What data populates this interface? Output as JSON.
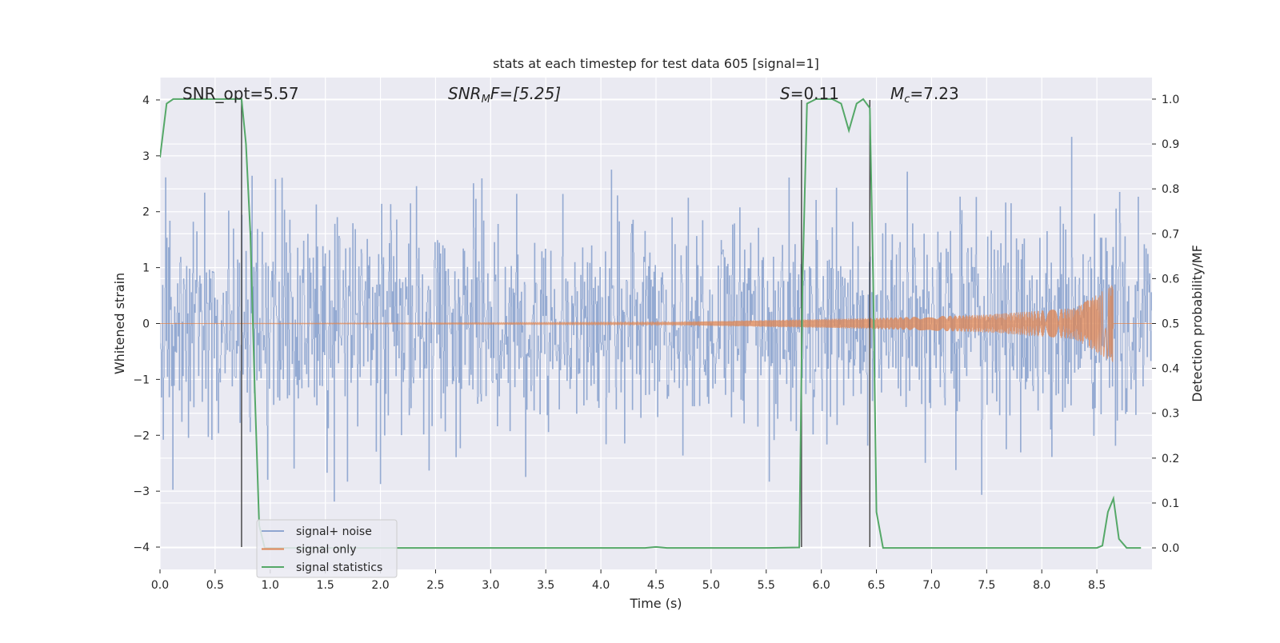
{
  "chart_data": {
    "type": "line",
    "title": "stats at each timestep for test data 605 [signal=1]",
    "xlabel": "Time (s)",
    "ylabel": "Whitened strain",
    "y2label": "Detection probability/MF",
    "xlim": [
      0,
      9.0
    ],
    "ylim": [
      -4.4,
      4.4
    ],
    "y2lim": [
      -0.048,
      1.048
    ],
    "x_ticks": [
      0.0,
      0.5,
      1.0,
      1.5,
      2.0,
      2.5,
      3.0,
      3.5,
      4.0,
      4.5,
      5.0,
      5.5,
      6.0,
      6.5,
      7.0,
      7.5,
      8.0,
      8.5
    ],
    "x_tick_labels": [
      "0.0",
      "0.5",
      "1.0",
      "1.5",
      "2.0",
      "2.5",
      "3.0",
      "3.5",
      "4.0",
      "4.5",
      "5.0",
      "5.5",
      "6.0",
      "6.5",
      "7.0",
      "7.5",
      "8.0",
      "8.5"
    ],
    "y_ticks": [
      -4,
      -3,
      -2,
      -1,
      0,
      1,
      2,
      3,
      4
    ],
    "y_tick_labels": [
      "−4",
      "−3",
      "−2",
      "−1",
      "0",
      "1",
      "2",
      "3",
      "4"
    ],
    "y2_ticks": [
      0.0,
      0.1,
      0.2,
      0.3,
      0.4,
      0.5,
      0.6,
      0.7,
      0.8,
      0.9,
      1.0
    ],
    "y2_tick_labels": [
      "0.0",
      "0.1",
      "0.2",
      "0.3",
      "0.4",
      "0.5",
      "0.6",
      "0.7",
      "0.8",
      "0.9",
      "1.0"
    ],
    "grid": true,
    "legend_position": "lower-left",
    "annotations": {
      "snr_opt": "SNR_opt=5.57",
      "snr_mf_sym": "SNR",
      "snr_mf_sub": "M",
      "snr_mf_rest": "F=[5.25]",
      "s_sym": "S",
      "s_rest": "=0.11",
      "mc_sym": "M",
      "mc_sub": "c",
      "mc_rest": "=7.23"
    },
    "series": [
      {
        "name": "signal+ noise",
        "color": "#8fa6d0",
        "kind": "noise",
        "x_range": [
          0,
          9.0
        ],
        "sigma": 1.0,
        "envelope_max": 3.6,
        "envelope_min": -3.6
      },
      {
        "name": "signal only",
        "color": "#dd8452",
        "kind": "chirp",
        "x_range": [
          0,
          8.65
        ],
        "amplitude_points": [
          [
            0,
            0.0
          ],
          [
            4.5,
            0.02
          ],
          [
            5.5,
            0.06
          ],
          [
            6.5,
            0.1
          ],
          [
            7.5,
            0.16
          ],
          [
            8.3,
            0.28
          ],
          [
            8.65,
            0.7
          ]
        ]
      },
      {
        "name": "signal statistics",
        "color": "#55a868",
        "kind": "line",
        "axis": "right",
        "points": [
          [
            0.0,
            0.87
          ],
          [
            0.06,
            0.99
          ],
          [
            0.12,
            1.0
          ],
          [
            0.2,
            1.0
          ],
          [
            0.4,
            1.0
          ],
          [
            0.6,
            1.0
          ],
          [
            0.74,
            1.0
          ],
          [
            0.78,
            0.9
          ],
          [
            0.82,
            0.7
          ],
          [
            0.86,
            0.35
          ],
          [
            0.9,
            0.05
          ],
          [
            0.95,
            0.0
          ],
          [
            2.0,
            0.0
          ],
          [
            3.0,
            0.0
          ],
          [
            4.0,
            0.0
          ],
          [
            4.4,
            0.0
          ],
          [
            4.5,
            0.002
          ],
          [
            4.6,
            0.0
          ],
          [
            5.0,
            0.0
          ],
          [
            5.5,
            0.0
          ],
          [
            5.8,
            0.001
          ],
          [
            5.83,
            0.6
          ],
          [
            5.87,
            0.99
          ],
          [
            5.95,
            1.0
          ],
          [
            6.1,
            1.0
          ],
          [
            6.18,
            0.99
          ],
          [
            6.25,
            0.93
          ],
          [
            6.32,
            0.99
          ],
          [
            6.38,
            1.0
          ],
          [
            6.44,
            0.98
          ],
          [
            6.47,
            0.6
          ],
          [
            6.5,
            0.08
          ],
          [
            6.56,
            0.0
          ],
          [
            7.0,
            0.0
          ],
          [
            8.0,
            0.0
          ],
          [
            8.5,
            0.0
          ],
          [
            8.55,
            0.005
          ],
          [
            8.6,
            0.08
          ],
          [
            8.65,
            0.11
          ],
          [
            8.7,
            0.02
          ],
          [
            8.77,
            0.0
          ],
          [
            8.9,
            0.0
          ]
        ]
      }
    ],
    "vertical_lines": [
      {
        "x": 0.74,
        "y_from": -4.0,
        "y_to": 4.0,
        "color": "#404040"
      },
      {
        "x": 5.82,
        "y_from": -4.0,
        "y_to": 4.0,
        "color": "#404040"
      },
      {
        "x": 6.44,
        "y_from": -4.0,
        "y_to": 4.0,
        "color": "#404040"
      }
    ]
  }
}
